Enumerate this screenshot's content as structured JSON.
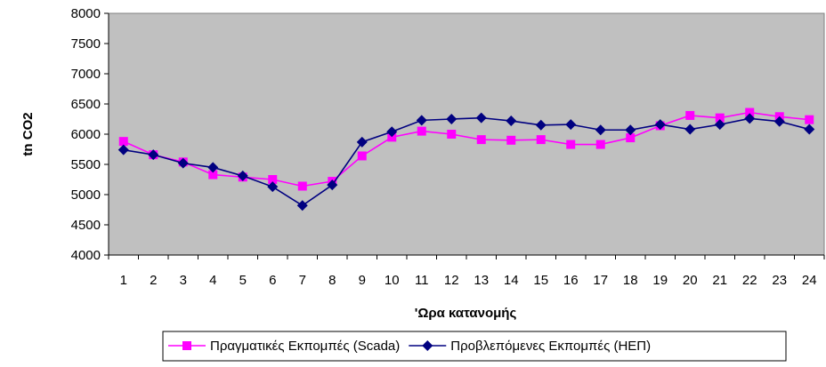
{
  "chart_data": {
    "type": "line",
    "title": "",
    "xlabel": "'Ωρα κατανομής",
    "ylabel": "tn CO2",
    "categories": [
      "1",
      "2",
      "3",
      "4",
      "5",
      "6",
      "7",
      "8",
      "9",
      "10",
      "11",
      "12",
      "13",
      "14",
      "15",
      "16",
      "17",
      "18",
      "19",
      "20",
      "21",
      "22",
      "23",
      "24"
    ],
    "ylim": [
      4000,
      8000
    ],
    "yticks": [
      4000,
      4500,
      5000,
      5500,
      6000,
      6500,
      7000,
      7500,
      8000
    ],
    "grid": false,
    "plot_background": "#c0c0c0",
    "legend_position": "bottom",
    "series": [
      {
        "name": "Πραγματικές Εκπομπές (Scada)",
        "color": "#ff00ff",
        "marker": "square",
        "values": [
          5880,
          5660,
          5540,
          5330,
          5290,
          5250,
          5140,
          5220,
          5640,
          5950,
          6050,
          6000,
          5910,
          5900,
          5910,
          5830,
          5830,
          5940,
          6140,
          6310,
          6270,
          6360,
          6290,
          6240
        ]
      },
      {
        "name": "Προβλεπόμενες Εκπομπές (ΗΕΠ)",
        "color": "#000080",
        "marker": "diamond",
        "values": [
          5740,
          5660,
          5520,
          5450,
          5310,
          5130,
          4820,
          5160,
          5870,
          6040,
          6230,
          6250,
          6270,
          6220,
          6150,
          6160,
          6070,
          6070,
          6160,
          6080,
          6160,
          6260,
          6210,
          6080
        ]
      }
    ]
  }
}
